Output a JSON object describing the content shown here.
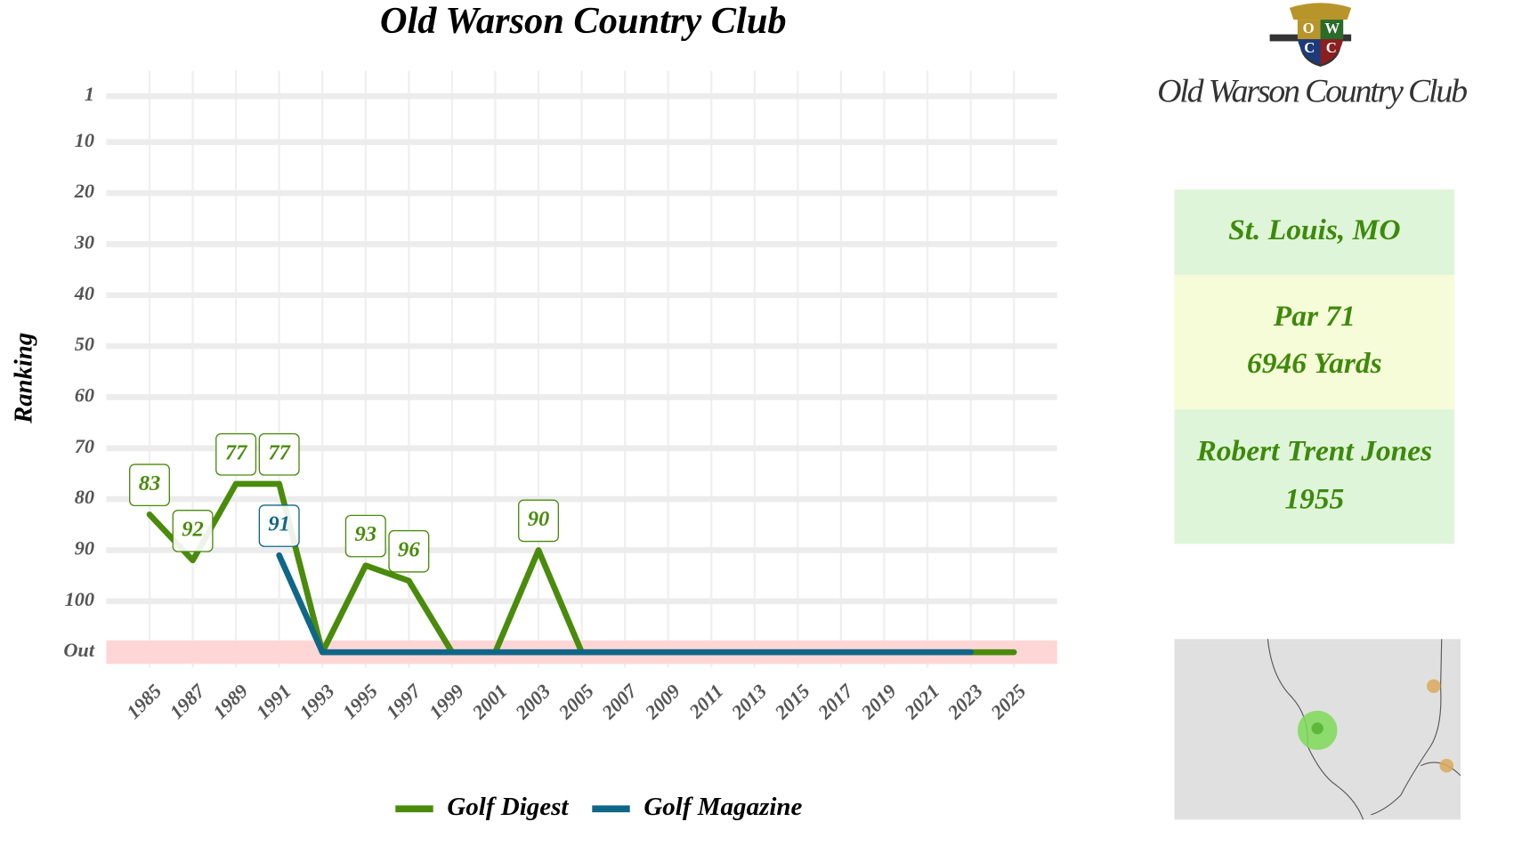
{
  "chart_data": {
    "type": "line",
    "title": "Old Warson Country Club",
    "y_label": "Ranking",
    "xlim": [
      1983,
      2027
    ],
    "xticks": [
      1985,
      1987,
      1989,
      1991,
      1993,
      1995,
      1997,
      1999,
      2001,
      2003,
      2005,
      2007,
      2009,
      2011,
      2013,
      2015,
      2017,
      2019,
      2021,
      2023,
      2025
    ],
    "ylim": [
      -4,
      113
    ],
    "y_reversed": true,
    "yticks": [
      1,
      10,
      20,
      30,
      40,
      50,
      60,
      70,
      80,
      90,
      100,
      {
        "value": 110,
        "label": "Out"
      }
    ],
    "grid": true,
    "legend": "bottom",
    "series": [
      {
        "name": "Golf Digest",
        "color": "#4a8b0c",
        "x": [
          1985,
          1987,
          1989,
          1991,
          1993,
          1995,
          1997,
          1999,
          2001,
          2003,
          2005,
          2007,
          2009,
          2011,
          2013,
          2015,
          2017,
          2019,
          2021,
          2023,
          2025
        ],
        "values": [
          83,
          92,
          77,
          77,
          110,
          93,
          96,
          110,
          110,
          90,
          110,
          110,
          110,
          110,
          110,
          110,
          110,
          110,
          110,
          110,
          110
        ],
        "value_labels": [
          83,
          92,
          77,
          77,
          null,
          93,
          96,
          null,
          null,
          90,
          null,
          null,
          null,
          null,
          null,
          null,
          null,
          null,
          null,
          null,
          null
        ]
      },
      {
        "name": "Golf Magazine",
        "color": "#0f6788",
        "x": [
          1991,
          1993,
          1995,
          1997,
          1999,
          2001,
          2003,
          2005,
          2007,
          2009,
          2011,
          2013,
          2015,
          2017,
          2019,
          2021,
          2023
        ],
        "values": [
          91,
          110,
          110,
          110,
          110,
          110,
          110,
          110,
          110,
          110,
          110,
          110,
          110,
          110,
          110,
          110,
          110
        ],
        "value_labels": [
          91,
          null,
          null,
          null,
          null,
          null,
          null,
          null,
          null,
          null,
          null,
          null,
          null,
          null,
          null,
          null,
          null
        ]
      }
    ]
  },
  "sidebar": {
    "logo": {
      "letters": [
        "O",
        "W",
        "C",
        "C"
      ],
      "text": "Old Warson Country Club"
    },
    "location": "St. Louis, MO",
    "par": "Par 71",
    "yards": "6946 Yards",
    "architect": "Robert Trent Jones",
    "year": "1955"
  }
}
